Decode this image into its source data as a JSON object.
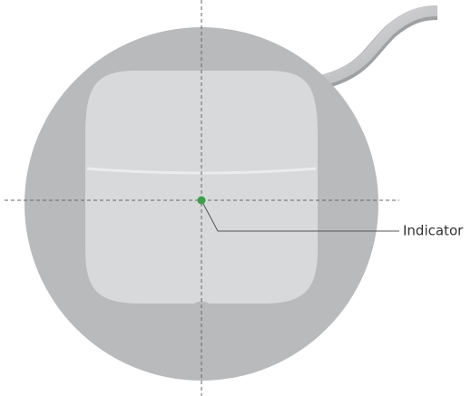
{
  "callout": {
    "label": "Indicator"
  }
}
